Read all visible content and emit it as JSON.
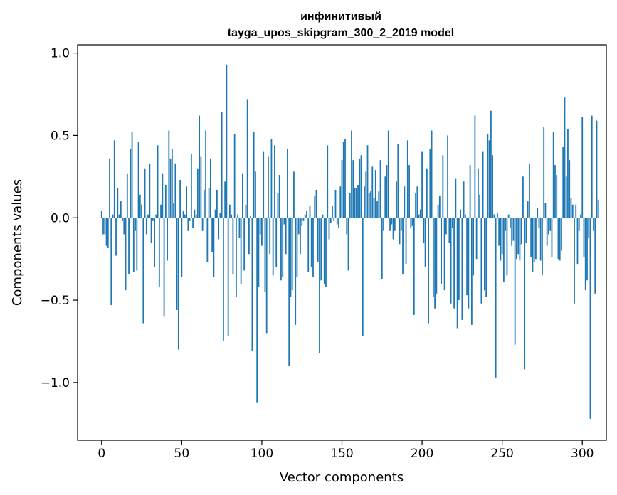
{
  "chart_data": {
    "type": "bar",
    "title": "инфинитивый",
    "subtitle": "tayga_upos_skipgram_300_2_2019 model",
    "xlabel": "Vector components",
    "ylabel": "Components values",
    "xlim": [
      -15,
      315
    ],
    "ylim": [
      -1.35,
      1.05
    ],
    "xticks": [
      0,
      50,
      100,
      150,
      200,
      250,
      300
    ],
    "xtick_labels": [
      "0",
      "50",
      "100",
      "150",
      "200",
      "250",
      "300"
    ],
    "yticks": [
      1.0,
      0.5,
      0.0,
      -0.5,
      -1.0
    ],
    "ytick_labels": [
      "1.0",
      "0.5",
      "0.0",
      "−0.5",
      "−1.0"
    ],
    "grid": false,
    "bar_color": "#1f77b4",
    "values": [
      0.04,
      -0.1,
      -0.1,
      -0.17,
      -0.18,
      0.36,
      -0.53,
      0.02,
      0.47,
      -0.23,
      0.18,
      0.02,
      0.1,
      -0.02,
      -0.1,
      -0.44,
      0.27,
      -0.34,
      0.42,
      0.52,
      -0.33,
      -0.08,
      -0.32,
      0.46,
      0.14,
      0.08,
      -0.64,
      0.3,
      -0.1,
      0.02,
      0.33,
      -0.15,
      -0.02,
      -0.3,
      0.02,
      0.44,
      -0.42,
      0.08,
      0.27,
      -0.6,
      0.2,
      -0.26,
      0.53,
      0.36,
      0.42,
      0.09,
      0.33,
      -0.56,
      -0.8,
      0.23,
      -0.36,
      0.04,
      0.02,
      0.19,
      -0.08,
      -0.02,
      0.39,
      -0.06,
      0.05,
      0.02,
      0.3,
      0.62,
      0.37,
      -0.08,
      0.17,
      0.53,
      -0.27,
      0.18,
      0.36,
      -0.21,
      -0.36,
      0.05,
      0.17,
      -0.13,
      0.03,
      0.64,
      -0.75,
      0.22,
      0.93,
      -0.72,
      0.08,
      0.02,
      -0.34,
      0.51,
      -0.48,
      0.02,
      -0.12,
      -0.4,
      0.27,
      -0.32,
      0.08,
      0.72,
      -0.22,
      0.01,
      -0.81,
      0.52,
      0.28,
      -1.12,
      -0.42,
      -0.1,
      -0.17,
      0.4,
      -0.45,
      -0.7,
      0.37,
      -0.22,
      0.48,
      -0.35,
      0.44,
      -0.3,
      0.15,
      0.26,
      -0.38,
      -0.36,
      -0.04,
      -0.22,
      0.42,
      -0.9,
      -0.48,
      -0.44,
      0.28,
      -0.65,
      -0.36,
      -0.1,
      -0.22,
      -0.05,
      -0.02,
      0.02,
      0.04,
      -0.33,
      0.07,
      -0.3,
      -0.36,
      0.13,
      0.17,
      -0.27,
      -0.82,
      -0.38,
      0.02,
      -0.4,
      -0.42,
      0.44,
      -0.13,
      -0.03,
      0.07,
      -0.02,
      0.17,
      -0.04,
      -0.06,
      0.19,
      0.35,
      0.46,
      0.48,
      -0.1,
      -0.32,
      0.15,
      0.53,
      0.35,
      0.18,
      0.18,
      0.2,
      0.36,
      0.38,
      -0.72,
      0.19,
      0.28,
      0.44,
      0.15,
      0.16,
      0.31,
      0.12,
      0.29,
      0.1,
      0.16,
      0.35,
      -0.37,
      -0.08,
      0.25,
      0.32,
      0.53,
      -0.08,
      -0.04,
      -0.13,
      -0.08,
      0.22,
      0.45,
      -0.16,
      -0.08,
      -0.34,
      0.19,
      -0.28,
      0.47,
      0.32,
      -0.06,
      -0.05,
      -0.59,
      0.15,
      0.19,
      0.02,
      0.05,
      0.4,
      -0.15,
      -0.3,
      0.3,
      -0.64,
      0.42,
      0.53,
      -0.48,
      -0.55,
      -0.46,
      0.08,
      0.13,
      -0.4,
      0.38,
      -0.44,
      -0.1,
      0.5,
      -0.15,
      -0.52,
      -0.06,
      -0.55,
      0.24,
      -0.67,
      -0.5,
      0.05,
      -0.62,
      0.22,
      0.02,
      -0.47,
      -0.55,
      0.32,
      -0.65,
      -0.35,
      0.62,
      -0.25,
      0.3,
      0.14,
      -0.52,
      0.4,
      -0.44,
      -0.48,
      0.51,
      0.47,
      0.65,
      0.38,
      0.02,
      -0.97,
      0.03,
      -0.17,
      -0.26,
      -0.22,
      -0.39,
      -0.08,
      -0.35,
      0.02,
      -0.06,
      -0.17,
      -0.14,
      -0.77,
      -0.25,
      -0.22,
      -0.26,
      -0.16,
      0.25,
      -0.92,
      -0.15,
      0.1,
      0.33,
      -0.24,
      -0.33,
      -0.27,
      -0.25,
      0.06,
      -0.06,
      -0.26,
      -0.35,
      0.55,
      0.09,
      -0.17,
      -0.1,
      -0.08,
      -0.24,
      0.52,
      0.32,
      0.26,
      -0.25,
      -0.26,
      -0.2,
      0.43,
      0.73,
      0.25,
      0.54,
      0.35,
      0.12,
      0.08,
      -0.52,
      0.08,
      -0.28,
      -0.08,
      0.02,
      0.61,
      -0.24,
      -0.44,
      -0.38,
      -0.12,
      -1.22,
      0.62,
      -0.08,
      -0.46,
      0.59,
      0.11
    ]
  }
}
